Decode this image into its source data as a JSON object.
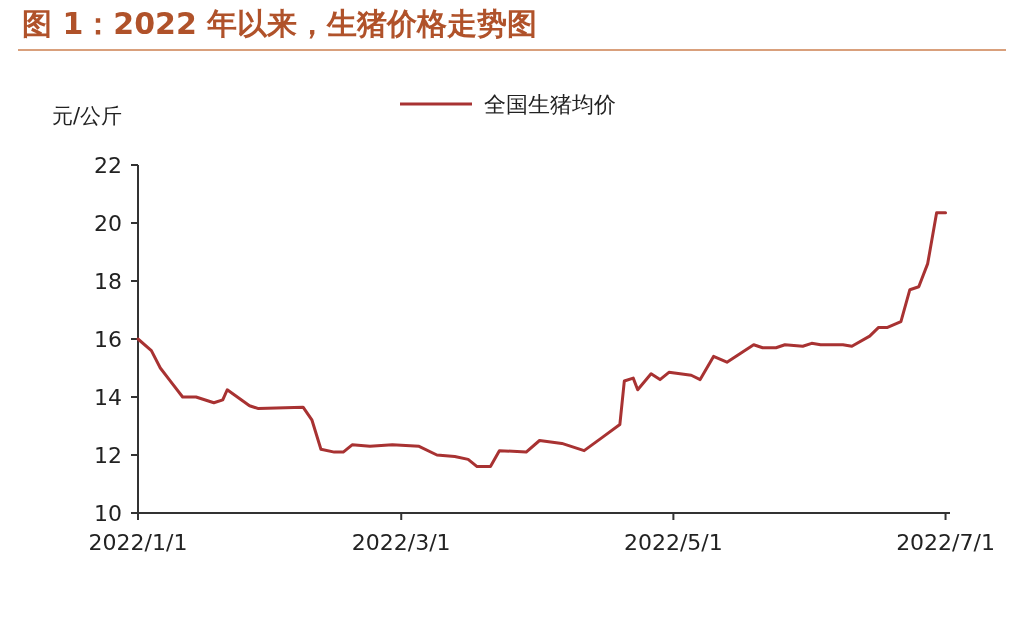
{
  "chart_data": {
    "type": "line",
    "title": "图 1：2022 年以来，生猪价格走势图",
    "ylabel": "元/公斤",
    "legend": "top",
    "x": [
      "2022-01-01",
      "2022-01-04",
      "2022-01-06",
      "2022-01-08",
      "2022-01-11",
      "2022-01-14",
      "2022-01-18",
      "2022-01-20",
      "2022-01-21",
      "2022-01-26",
      "2022-01-28",
      "2022-02-07",
      "2022-02-09",
      "2022-02-11",
      "2022-02-14",
      "2022-02-16",
      "2022-02-18",
      "2022-02-22",
      "2022-02-27",
      "2022-03-05",
      "2022-03-09",
      "2022-03-13",
      "2022-03-16",
      "2022-03-18",
      "2022-03-21",
      "2022-03-23",
      "2022-03-29",
      "2022-04-01",
      "2022-04-06",
      "2022-04-11",
      "2022-04-15",
      "2022-04-19",
      "2022-04-20",
      "2022-04-22",
      "2022-04-23",
      "2022-04-26",
      "2022-04-28",
      "2022-04-30",
      "2022-05-05",
      "2022-05-07",
      "2022-05-10",
      "2022-05-13",
      "2022-05-16",
      "2022-05-19",
      "2022-05-21",
      "2022-05-24",
      "2022-05-26",
      "2022-05-30",
      "2022-06-01",
      "2022-06-03",
      "2022-06-08",
      "2022-06-10",
      "2022-06-14",
      "2022-06-16",
      "2022-06-18",
      "2022-06-21",
      "2022-06-23",
      "2022-06-25",
      "2022-06-27",
      "2022-06-29",
      "2022-07-01"
    ],
    "series": [
      {
        "name": "全国生猪均价",
        "color": "#a83232",
        "values": [
          16.0,
          15.6,
          15.0,
          14.6,
          14.0,
          14.0,
          13.8,
          13.9,
          14.25,
          13.7,
          13.6,
          13.65,
          13.2,
          12.2,
          12.1,
          12.1,
          12.35,
          12.3,
          12.35,
          12.3,
          12.0,
          11.95,
          11.85,
          11.6,
          11.6,
          12.15,
          12.1,
          12.5,
          12.4,
          12.15,
          12.6,
          13.05,
          14.55,
          14.65,
          14.25,
          14.8,
          14.6,
          14.85,
          14.75,
          14.6,
          15.4,
          15.2,
          15.5,
          15.8,
          15.7,
          15.7,
          15.8,
          15.75,
          15.85,
          15.8,
          15.8,
          15.75,
          16.1,
          16.4,
          16.4,
          16.6,
          17.7,
          17.8,
          18.6,
          20.35,
          20.35
        ]
      }
    ],
    "xlim": [
      "2022-01-01",
      "2022-07-02"
    ],
    "xticks": [
      {
        "value": "2022-01-01",
        "label": "2022/1/1"
      },
      {
        "value": "2022-03-01",
        "label": "2022/3/1"
      },
      {
        "value": "2022-05-01",
        "label": "2022/5/1"
      },
      {
        "value": "2022-07-01",
        "label": "2022/7/1"
      }
    ],
    "ylim": [
      10,
      22
    ],
    "yticks": [
      10,
      12,
      14,
      16,
      18,
      20,
      22
    ]
  }
}
